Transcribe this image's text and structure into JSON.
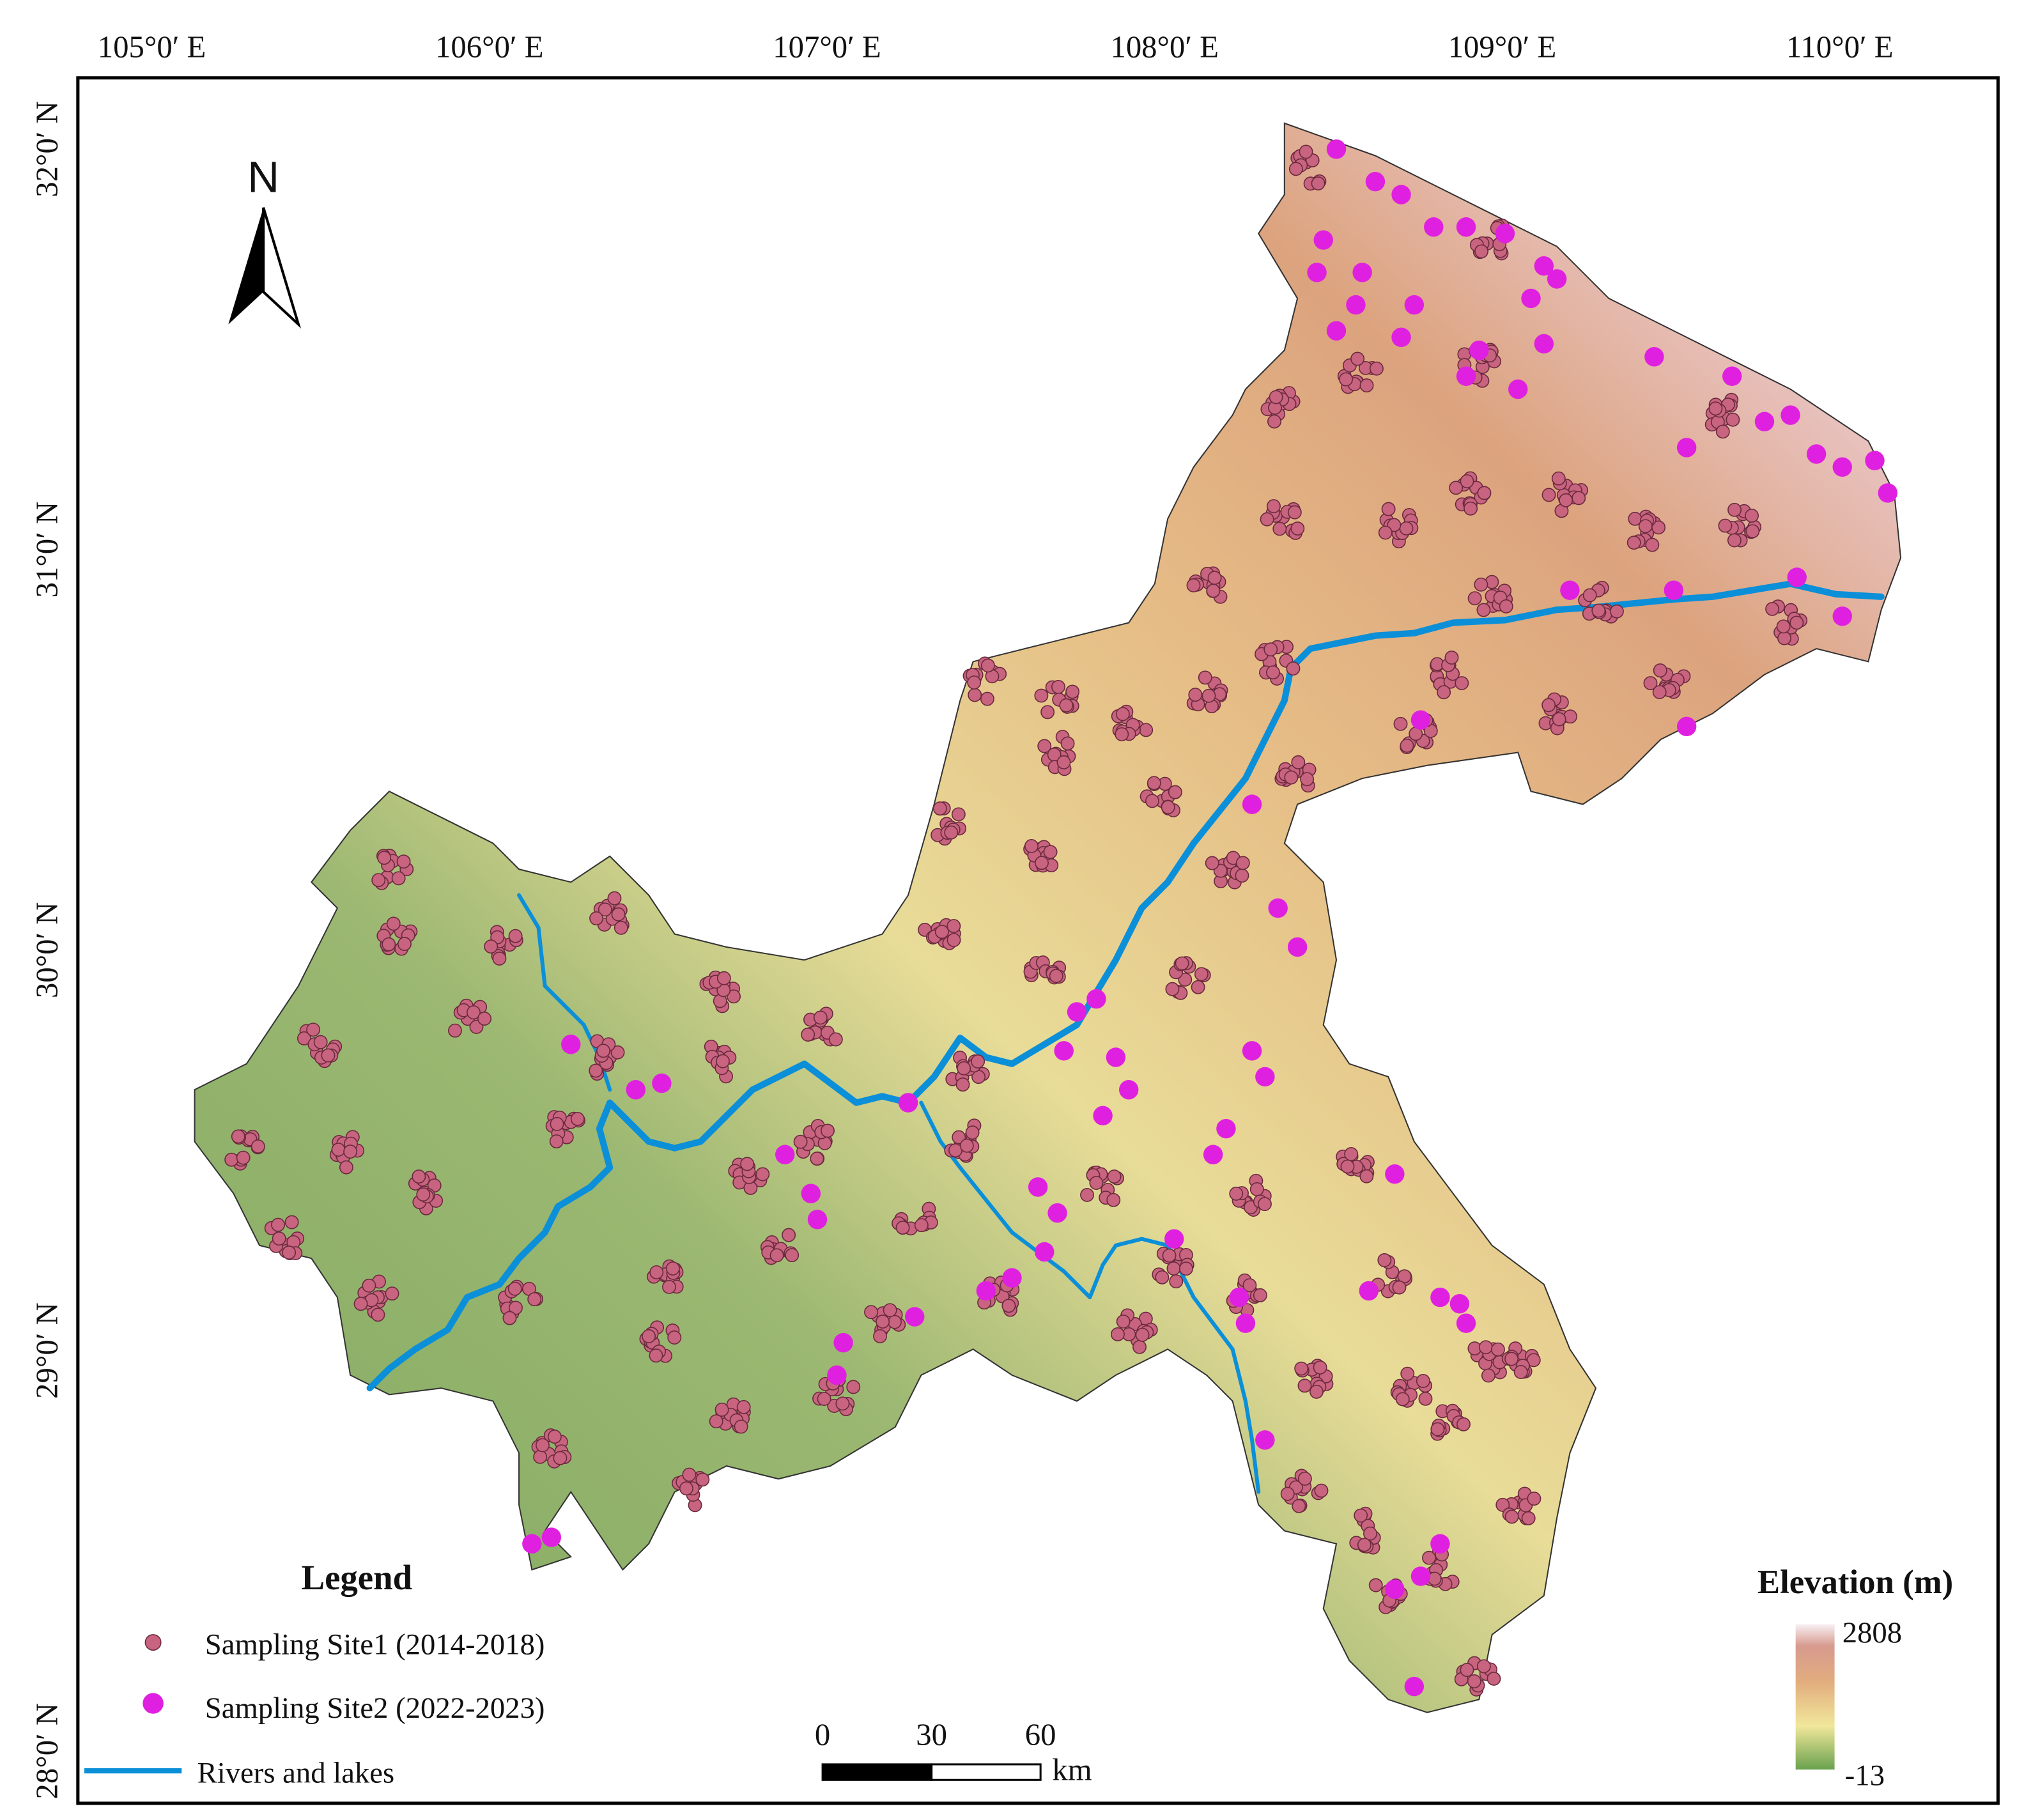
{
  "map": {
    "lon_labels": [
      "105°0′ E",
      "106°0′ E",
      "107°0′ E",
      "108°0′ E",
      "109°0′ E",
      "110°0′ E"
    ],
    "lat_labels": [
      "32°0′ N",
      "31°0′ N",
      "30°0′ N",
      "29°0′ N",
      "28°0′ N"
    ],
    "north": "N",
    "legend": {
      "title": "Legend",
      "items": [
        "Sampling Site1 (2014-2018)",
        "Sampling Site2 (2022-2023)",
        "Rivers and lakes"
      ]
    },
    "scale_bar": {
      "labels": [
        "0",
        "30",
        "60"
      ],
      "unit": "km"
    },
    "elevation": {
      "title": "Elevation (m)",
      "max": "2808",
      "min": "-13"
    }
  }
}
